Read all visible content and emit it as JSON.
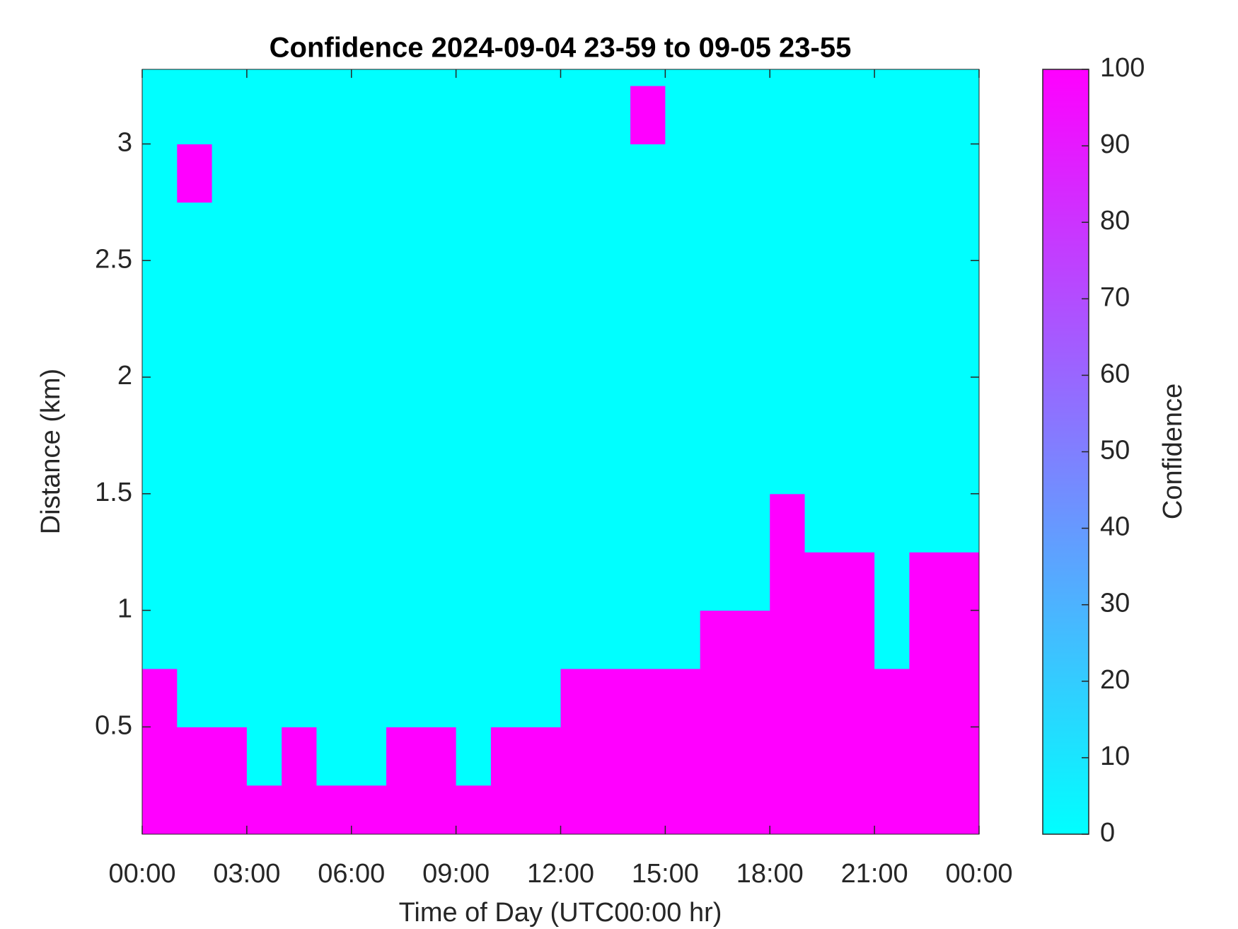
{
  "chart_data": {
    "type": "heatmap",
    "title": "Confidence 2024-09-04 23-59 to 09-05 23-55",
    "xlabel": "Time of Day (UTC00:00 hr)",
    "ylabel": "Distance (km)",
    "colorbar_label": "Confidence",
    "xlim": [
      0,
      24
    ],
    "xticks": [
      {
        "value": 0,
        "label": "00:00"
      },
      {
        "value": 3,
        "label": "03:00"
      },
      {
        "value": 6,
        "label": "06:00"
      },
      {
        "value": 9,
        "label": "09:00"
      },
      {
        "value": 12,
        "label": "12:00"
      },
      {
        "value": 15,
        "label": "15:00"
      },
      {
        "value": 18,
        "label": "18:00"
      },
      {
        "value": 21,
        "label": "21:00"
      },
      {
        "value": 24,
        "label": "00:00"
      }
    ],
    "ylim": [
      0.04,
      3.32
    ],
    "yticks": [
      0.5,
      1,
      1.5,
      2,
      2.5,
      3
    ],
    "clim": [
      0,
      100
    ],
    "cticks": [
      0,
      10,
      20,
      30,
      40,
      50,
      60,
      70,
      80,
      90,
      100
    ],
    "colormap": [
      "#00ffff",
      "#ff00ff"
    ],
    "xbins": [
      0,
      1,
      2,
      3,
      4,
      5,
      6,
      7,
      8,
      9,
      10,
      11,
      12,
      13,
      14,
      15,
      16,
      17,
      18,
      19,
      20,
      21,
      22,
      23,
      24
    ],
    "ybins": [
      0.04,
      0.25,
      0.5,
      0.75,
      1,
      1.25,
      1.5,
      1.75,
      2,
      2.25,
      2.5,
      2.75,
      3,
      3.25,
      3.32
    ],
    "z": [
      [
        100,
        100,
        100,
        100,
        100,
        100,
        100,
        100,
        100,
        100,
        100,
        100,
        100,
        100,
        100,
        100,
        100,
        100,
        100,
        100,
        100,
        100,
        100,
        100
      ],
      [
        100,
        100,
        100,
        0,
        100,
        0,
        0,
        100,
        100,
        0,
        100,
        100,
        100,
        100,
        100,
        100,
        100,
        100,
        100,
        100,
        100,
        100,
        100,
        100
      ],
      [
        100,
        0,
        0,
        0,
        0,
        0,
        0,
        0,
        0,
        0,
        0,
        0,
        100,
        100,
        100,
        100,
        100,
        100,
        100,
        100,
        100,
        100,
        100,
        100
      ],
      [
        0,
        0,
        0,
        0,
        0,
        0,
        0,
        0,
        0,
        0,
        0,
        0,
        0,
        0,
        0,
        0,
        100,
        100,
        100,
        100,
        100,
        0,
        100,
        100
      ],
      [
        0,
        0,
        0,
        0,
        0,
        0,
        0,
        0,
        0,
        0,
        0,
        0,
        0,
        0,
        0,
        0,
        0,
        0,
        100,
        100,
        100,
        0,
        100,
        100
      ],
      [
        0,
        0,
        0,
        0,
        0,
        0,
        0,
        0,
        0,
        0,
        0,
        0,
        0,
        0,
        0,
        0,
        0,
        0,
        100,
        0,
        0,
        0,
        0,
        0
      ],
      [
        0,
        0,
        0,
        0,
        0,
        0,
        0,
        0,
        0,
        0,
        0,
        0,
        0,
        0,
        0,
        0,
        0,
        0,
        0,
        0,
        0,
        0,
        0,
        0
      ],
      [
        0,
        0,
        0,
        0,
        0,
        0,
        0,
        0,
        0,
        0,
        0,
        0,
        0,
        0,
        0,
        0,
        0,
        0,
        0,
        0,
        0,
        0,
        0,
        0
      ],
      [
        0,
        0,
        0,
        0,
        0,
        0,
        0,
        0,
        0,
        0,
        0,
        0,
        0,
        0,
        0,
        0,
        0,
        0,
        0,
        0,
        0,
        0,
        0,
        0
      ],
      [
        0,
        0,
        0,
        0,
        0,
        0,
        0,
        0,
        0,
        0,
        0,
        0,
        0,
        0,
        0,
        0,
        0,
        0,
        0,
        0,
        0,
        0,
        0,
        0
      ],
      [
        0,
        0,
        0,
        0,
        0,
        0,
        0,
        0,
        0,
        0,
        0,
        0,
        0,
        0,
        0,
        0,
        0,
        0,
        0,
        0,
        0,
        0,
        0,
        0
      ],
      [
        0,
        100,
        0,
        0,
        0,
        0,
        0,
        0,
        0,
        0,
        0,
        0,
        0,
        0,
        0,
        0,
        0,
        0,
        0,
        0,
        0,
        0,
        0,
        0
      ],
      [
        0,
        0,
        0,
        0,
        0,
        0,
        0,
        0,
        0,
        0,
        0,
        0,
        0,
        0,
        100,
        0,
        0,
        0,
        0,
        0,
        0,
        0,
        0,
        0
      ],
      [
        0,
        0,
        0,
        0,
        0,
        0,
        0,
        0,
        0,
        0,
        0,
        0,
        0,
        0,
        0,
        0,
        0,
        0,
        0,
        0,
        0,
        0,
        0,
        0
      ]
    ]
  }
}
